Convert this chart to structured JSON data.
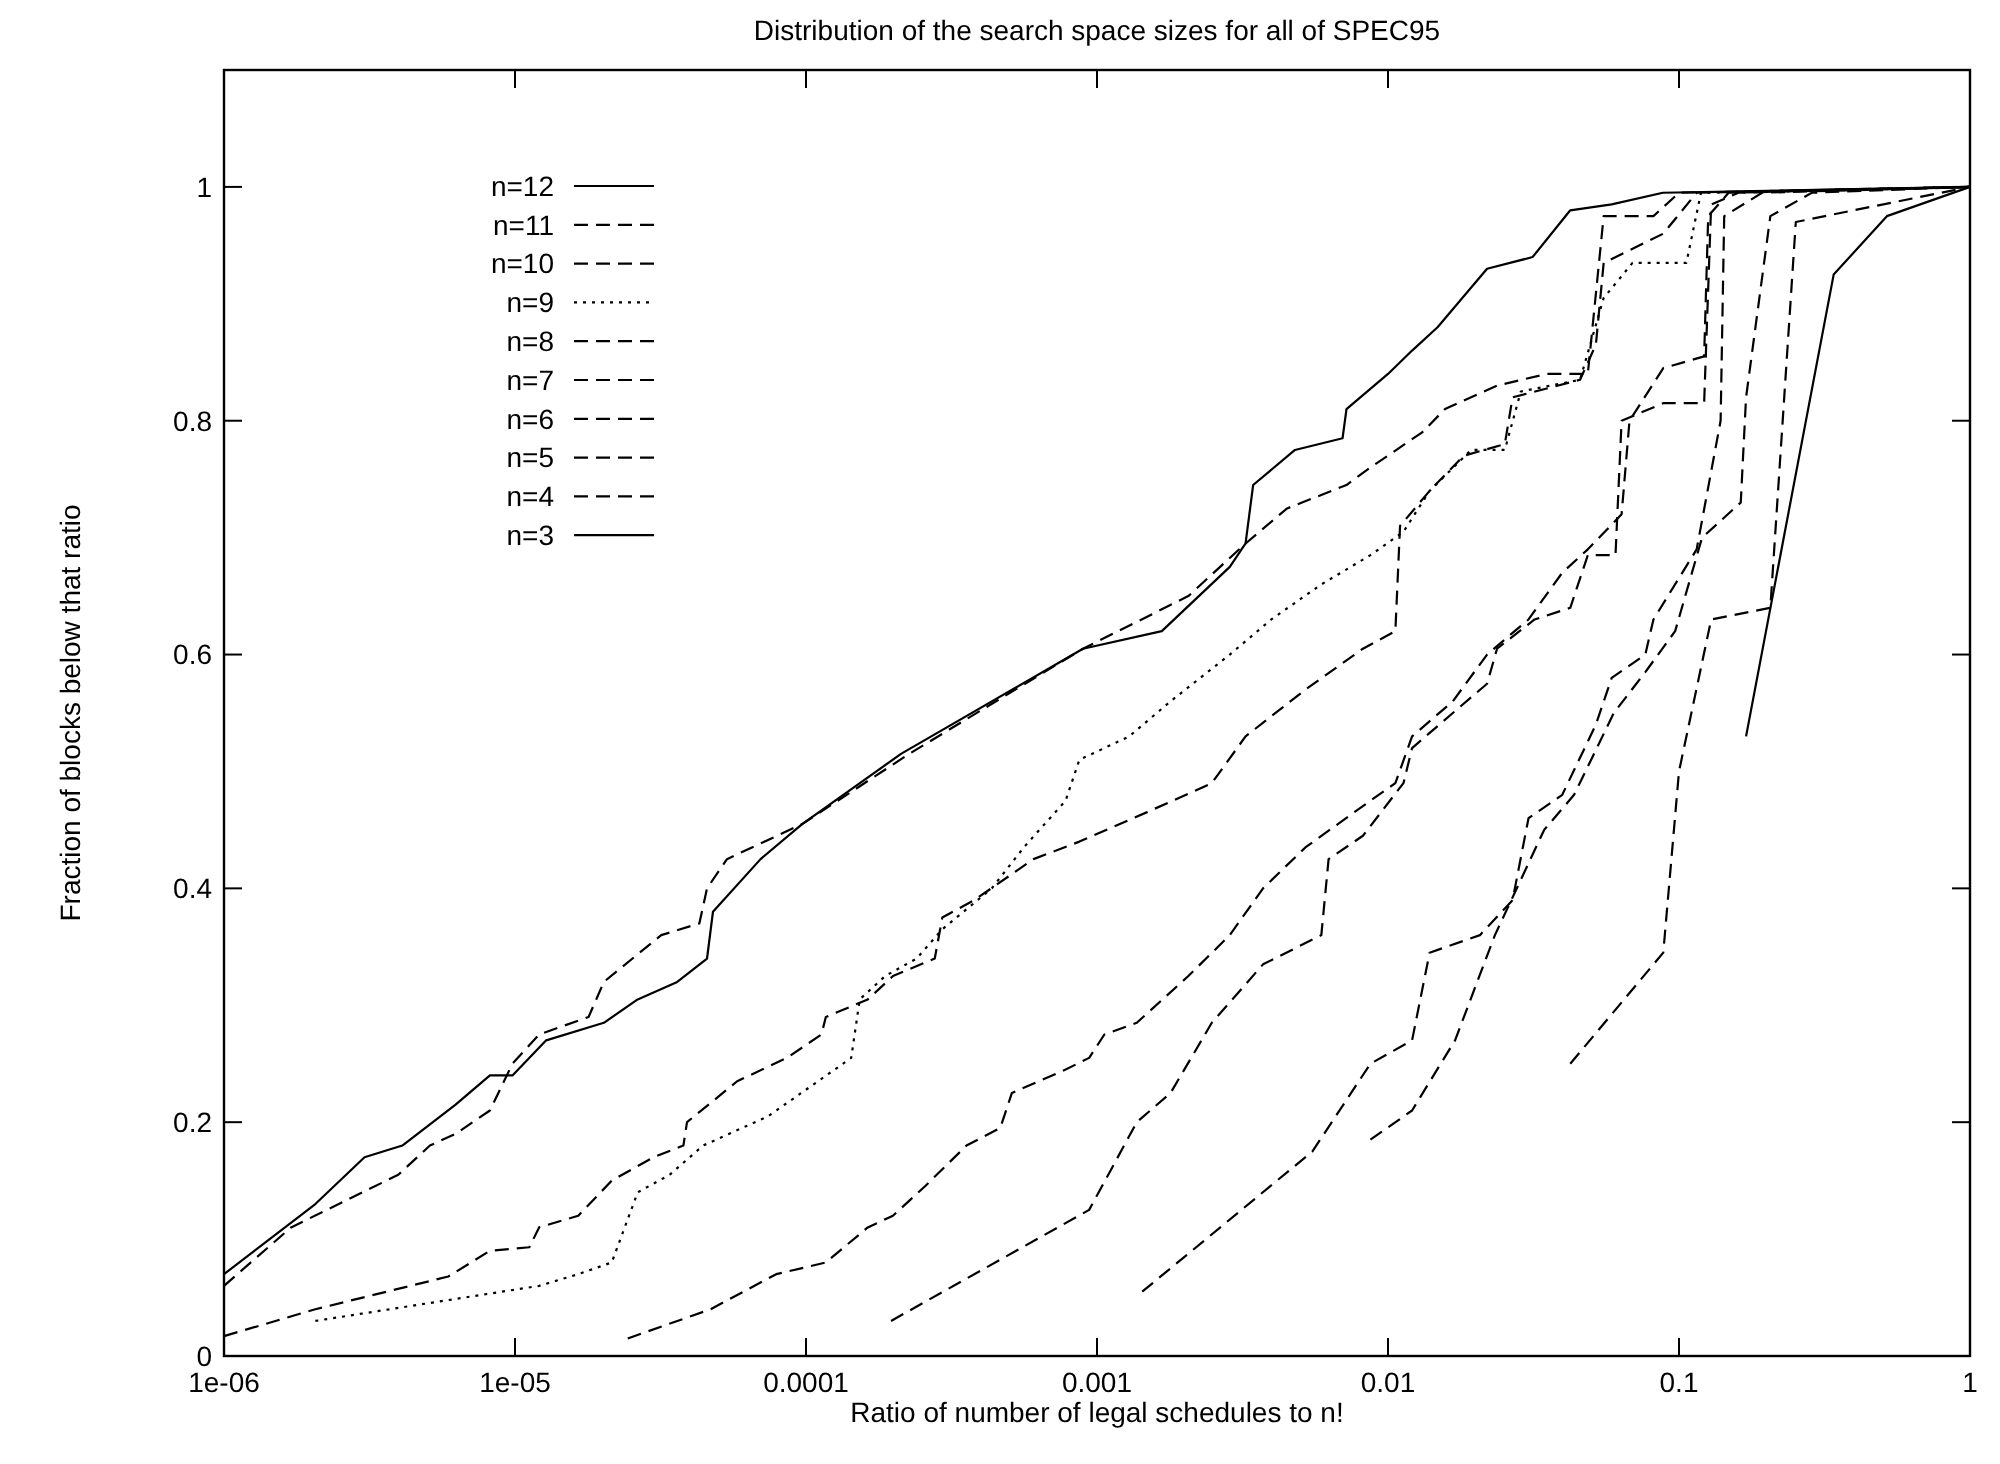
{
  "chart_data": {
    "type": "line",
    "title": "Distribution of the search space sizes for all of SPEC95",
    "xlabel": "Ratio of number of legal schedules to n!",
    "ylabel": "Fraction of blocks below that ratio",
    "log": "x",
    "xlim": [
      1e-06,
      1
    ],
    "xticks": [
      {
        "value": 1e-06,
        "label": "1e-06"
      },
      {
        "value": 1e-05,
        "label": "1e-05"
      },
      {
        "value": 0.0001,
        "label": "0.0001"
      },
      {
        "value": 0.001,
        "label": "0.001"
      },
      {
        "value": 0.01,
        "label": "0.01"
      },
      {
        "value": 0.1,
        "label": "0.1"
      },
      1
    ],
    "ylim": [
      0,
      1.1
    ],
    "yticks": [
      0,
      0.2,
      0.4,
      0.6,
      0.8,
      1
    ],
    "grid": false,
    "legend": "top left",
    "series": [
      {
        "name": "n=12",
        "color": "#000000",
        "line_style": "solid",
        "x": [
          1e-06,
          2.06e-06,
          3.04e-06,
          4.1e-06,
          6.25e-06,
          8.2e-06,
          9.8e-06,
          1.28e-05,
          2.02e-05,
          2.64e-05,
          3.61e-05,
          4.57e-05,
          4.79e-05,
          6.98e-05,
          9.7e-05,
          0.000212,
          0.000895,
          0.00167,
          0.00286,
          0.00324,
          0.00344,
          0.00479,
          0.00698,
          0.0072,
          0.01,
          0.0121,
          0.0148,
          0.0219,
          0.0314,
          0.0423,
          0.0587,
          0.088,
          1
        ],
        "values": [
          0.07,
          0.13,
          0.17,
          0.18,
          0.215,
          0.24,
          0.24,
          0.27,
          0.285,
          0.305,
          0.32,
          0.34,
          0.38,
          0.425,
          0.455,
          0.515,
          0.605,
          0.62,
          0.675,
          0.695,
          0.745,
          0.775,
          0.785,
          0.81,
          0.84,
          0.86,
          0.88,
          0.93,
          0.94,
          0.98,
          0.985,
          0.995,
          1
        ]
      },
      {
        "name": "n=11",
        "color": "#000000",
        "line_style": "dashed",
        "x": [
          1e-06,
          1.7e-06,
          3.97e-06,
          5.1e-06,
          6.25e-06,
          8.2e-06,
          9.8e-06,
          1.21e-05,
          1.79e-05,
          2.02e-05,
          3.18e-05,
          4.3e-05,
          4.57e-05,
          5.35e-05,
          9.7e-05,
          0.000226,
          0.000895,
          0.00206,
          0.00324,
          0.0045,
          0.0072,
          0.0087,
          0.0131,
          0.0157,
          0.0237,
          0.035,
          0.0486,
          0.0551,
          0.0817,
          0.1,
          1
        ],
        "values": [
          0.06,
          0.11,
          0.155,
          0.18,
          0.19,
          0.21,
          0.25,
          0.275,
          0.29,
          0.32,
          0.36,
          0.37,
          0.4,
          0.425,
          0.455,
          0.515,
          0.605,
          0.65,
          0.695,
          0.725,
          0.745,
          0.76,
          0.79,
          0.81,
          0.83,
          0.84,
          0.84,
          0.975,
          0.975,
          0.995,
          1
        ]
      },
      {
        "name": "n=10",
        "color": "#000000",
        "line_style": "dashed",
        "x": [
          1e-06,
          2.06e-06,
          5.9e-06,
          8.2e-06,
          1.12e-05,
          1.21e-05,
          1.65e-05,
          2.15e-05,
          2.99e-05,
          3.79e-05,
          3.9e-05,
          5.8e-05,
          8.6e-05,
          0.000113,
          0.000117,
          0.000163,
          0.000199,
          0.000277,
          0.000294,
          0.000379,
          0.000605,
          0.00087,
          0.00148,
          0.00248,
          0.00324,
          0.0052,
          0.0082,
          0.0106,
          0.011,
          0.0139,
          0.0182,
          0.0252,
          0.0268,
          0.0457,
          0.0518,
          0.0551,
          0.0883,
          0.115,
          1
        ],
        "values": [
          0.017,
          0.04,
          0.068,
          0.09,
          0.093,
          0.11,
          0.12,
          0.15,
          0.17,
          0.18,
          0.2,
          0.235,
          0.255,
          0.275,
          0.29,
          0.305,
          0.325,
          0.34,
          0.375,
          0.39,
          0.425,
          0.44,
          0.465,
          0.49,
          0.53,
          0.57,
          0.605,
          0.62,
          0.71,
          0.74,
          0.77,
          0.78,
          0.82,
          0.835,
          0.865,
          0.935,
          0.96,
          0.995,
          1
        ]
      },
      {
        "name": "n=9",
        "color": "#000000",
        "line_style": "dotted",
        "x": [
          2.06e-06,
          1.21e-05,
          1.65e-05,
          2.15e-05,
          2.64e-05,
          3.4e-05,
          4.43e-05,
          7.4e-05,
          0.00011,
          0.000143,
          0.000153,
          0.000187,
          0.00024,
          0.000294,
          0.000435,
          0.00056,
          0.00078,
          0.00087,
          0.00129,
          0.00179,
          0.00286,
          0.00397,
          0.0059,
          0.0087,
          0.0113,
          0.0139,
          0.0193,
          0.0252,
          0.0286,
          0.0457,
          0.0551,
          0.0692,
          0.106,
          0.119,
          1
        ],
        "values": [
          0.03,
          0.06,
          0.07,
          0.08,
          0.14,
          0.155,
          0.18,
          0.205,
          0.235,
          0.255,
          0.305,
          0.325,
          0.34,
          0.365,
          0.4,
          0.435,
          0.475,
          0.51,
          0.53,
          0.56,
          0.6,
          0.63,
          0.66,
          0.685,
          0.705,
          0.74,
          0.775,
          0.775,
          0.825,
          0.835,
          0.905,
          0.935,
          0.935,
          0.995,
          1
        ]
      },
      {
        "name": "n=8",
        "color": "#000000",
        "line_style": "dashed",
        "x": [
          2.44e-05,
          4.7e-05,
          7.9e-05,
          0.000117,
          0.000163,
          0.000199,
          0.000256,
          0.000356,
          0.000465,
          0.00051,
          0.00078,
          0.00094,
          0.00106,
          0.00137,
          0.00206,
          0.00286,
          0.00372,
          0.0052,
          0.0087,
          0.0106,
          0.0121,
          0.0167,
          0.0219,
          0.0304,
          0.0397,
          0.0486,
          0.0635,
          0.0676,
          0.0883,
          0.122,
          0.126,
          0.148,
          1
        ],
        "values": [
          0.015,
          0.04,
          0.07,
          0.08,
          0.11,
          0.12,
          0.145,
          0.18,
          0.195,
          0.225,
          0.245,
          0.255,
          0.275,
          0.285,
          0.325,
          0.36,
          0.4,
          0.435,
          0.475,
          0.49,
          0.53,
          0.56,
          0.6,
          0.63,
          0.67,
          0.69,
          0.72,
          0.8,
          0.845,
          0.855,
          0.975,
          0.995,
          1
        ]
      },
      {
        "name": "n=7",
        "color": "#000000",
        "line_style": "dashed",
        "x": [
          0.000196,
          0.00094,
          0.00137,
          0.00179,
          0.00248,
          0.00372,
          0.0059,
          0.00625,
          0.0082,
          0.0113,
          0.0121,
          0.0167,
          0.0219,
          0.0237,
          0.0319,
          0.0423,
          0.0486,
          0.0605,
          0.0635,
          0.0883,
          0.122,
          0.129,
          0.16,
          1
        ],
        "values": [
          0.03,
          0.125,
          0.2,
          0.225,
          0.285,
          0.335,
          0.36,
          0.425,
          0.445,
          0.49,
          0.52,
          0.55,
          0.575,
          0.605,
          0.63,
          0.64,
          0.685,
          0.685,
          0.8,
          0.815,
          0.815,
          0.985,
          0.995,
          1
        ]
      },
      {
        "name": "n=6",
        "color": "#000000",
        "line_style": "dashed",
        "x": [
          0.00143,
          0.0055,
          0.0087,
          0.0121,
          0.0139,
          0.0207,
          0.0268,
          0.0304,
          0.0397,
          0.0518,
          0.0587,
          0.0766,
          0.0817,
          0.115,
          0.139,
          0.143,
          0.193,
          1
        ],
        "values": [
          0.055,
          0.175,
          0.25,
          0.27,
          0.345,
          0.36,
          0.39,
          0.46,
          0.48,
          0.54,
          0.58,
          0.6,
          0.63,
          0.69,
          0.8,
          0.975,
          0.995,
          1
        ]
      },
      {
        "name": "n=5",
        "color": "#000000",
        "line_style": "dashed",
        "x": [
          0.0087,
          0.0121,
          0.017,
          0.0233,
          0.0344,
          0.0436,
          0.0597,
          0.0766,
          0.097,
          0.12,
          0.163,
          0.17,
          0.206,
          0.286,
          1
        ],
        "values": [
          0.185,
          0.21,
          0.27,
          0.36,
          0.45,
          0.48,
          0.55,
          0.585,
          0.62,
          0.7,
          0.73,
          0.82,
          0.975,
          0.995,
          1
        ]
      },
      {
        "name": "n=4",
        "color": "#000000",
        "line_style": "dashed",
        "x": [
          0.0423,
          0.0883,
          0.1,
          0.129,
          0.206,
          0.252,
          1
        ],
        "values": [
          0.25,
          0.345,
          0.5,
          0.63,
          0.64,
          0.97,
          1
        ]
      },
      {
        "name": "n=3",
        "color": "#000000",
        "line_style": "solid",
        "x": [
          0.17,
          0.34,
          0.518,
          1
        ],
        "values": [
          0.53,
          0.925,
          0.975,
          1
        ]
      }
    ]
  }
}
